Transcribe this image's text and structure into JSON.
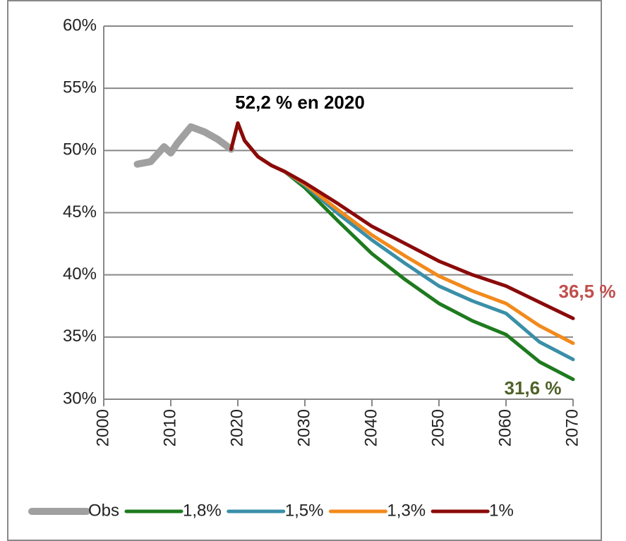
{
  "chart_data": {
    "type": "line",
    "x": [
      2005,
      2007,
      2009,
      2010,
      2011,
      2013,
      2015,
      2017,
      2019,
      2020,
      2021,
      2023,
      2025,
      2027,
      2030,
      2035,
      2040,
      2045,
      2050,
      2055,
      2060,
      2065,
      2070
    ],
    "series": [
      {
        "name": "Obs",
        "color": "#a0a0a0",
        "values": [
          48.9,
          49.1,
          50.3,
          49.8,
          50.6,
          51.9,
          51.5,
          50.9,
          50.1,
          null,
          null,
          null,
          null,
          null,
          null,
          null,
          null,
          null,
          null,
          null,
          null,
          null,
          null
        ]
      },
      {
        "name": "1,8%",
        "color": "#1e7a1e",
        "values": [
          null,
          null,
          null,
          null,
          null,
          null,
          null,
          null,
          50.1,
          52.2,
          50.8,
          49.5,
          48.8,
          48.3,
          47.0,
          44.3,
          41.7,
          39.6,
          37.7,
          36.3,
          35.2,
          33.0,
          31.6
        ]
      },
      {
        "name": "1,5%",
        "color": "#3a8fa8",
        "values": [
          null,
          null,
          null,
          null,
          null,
          null,
          null,
          null,
          50.1,
          52.2,
          50.8,
          49.5,
          48.8,
          48.3,
          47.2,
          44.9,
          42.8,
          40.9,
          39.1,
          37.9,
          36.9,
          34.6,
          33.2
        ]
      },
      {
        "name": "1,3%",
        "color": "#f28a1c",
        "values": [
          null,
          null,
          null,
          null,
          null,
          null,
          null,
          null,
          50.1,
          52.2,
          50.8,
          49.5,
          48.8,
          48.3,
          47.3,
          45.2,
          43.2,
          41.5,
          39.9,
          38.7,
          37.7,
          35.9,
          34.5
        ]
      },
      {
        "name": "1%",
        "color": "#8b0a0a",
        "values": [
          null,
          null,
          null,
          null,
          null,
          null,
          null,
          null,
          50.1,
          52.2,
          50.8,
          49.5,
          48.8,
          48.3,
          47.4,
          45.7,
          43.9,
          42.5,
          41.1,
          40.0,
          39.1,
          37.8,
          36.5
        ]
      }
    ],
    "xlim": [
      2000,
      2070
    ],
    "xticks": [
      2000,
      2010,
      2020,
      2030,
      2040,
      2050,
      2060,
      2070
    ],
    "ylim": [
      30,
      60
    ],
    "yticks": [
      {
        "value": 30,
        "label": "30%"
      },
      {
        "value": 35,
        "label": "35%"
      },
      {
        "value": 40,
        "label": "40%"
      },
      {
        "value": 45,
        "label": "45%"
      },
      {
        "value": 50,
        "label": "50%"
      },
      {
        "value": 55,
        "label": "55%"
      },
      {
        "value": 60,
        "label": "60%"
      }
    ],
    "grid": true,
    "legend": "bottom",
    "annotations": [
      {
        "text": "52,2 % en 2020",
        "color": "#000000"
      },
      {
        "text": "36,5 %",
        "color": "#c0504d"
      },
      {
        "text": "31,6 %",
        "color": "#4f6228"
      }
    ]
  }
}
